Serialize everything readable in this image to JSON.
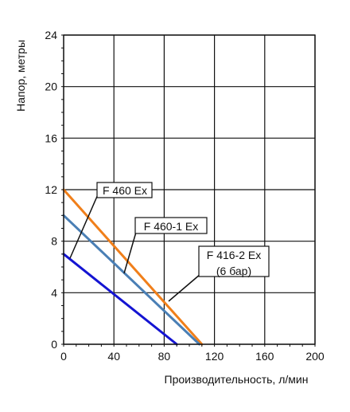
{
  "chart_data": {
    "type": "line",
    "xlabel": "Производительность, л/мин",
    "ylabel": "Напор, метры",
    "xlim": [
      0,
      200
    ],
    "ylim": [
      0,
      24
    ],
    "grid": true,
    "x_ticks": [
      0,
      40,
      80,
      120,
      160,
      200
    ],
    "y_ticks": [
      0,
      4,
      8,
      12,
      16,
      20,
      24
    ],
    "series": [
      {
        "name": "F 460 Ex",
        "color": "#f07f1a",
        "x": [
          0,
          110
        ],
        "y": [
          12,
          0
        ]
      },
      {
        "name": "F 460-1 Ex",
        "color": "#4a7fb5",
        "x": [
          0,
          108
        ],
        "y": [
          10,
          0
        ]
      },
      {
        "name": "F 416-2 Ex",
        "name_line2": "(6 бар)",
        "color": "#1414d2",
        "x": [
          0,
          90
        ],
        "y": [
          7,
          0
        ]
      }
    ]
  }
}
